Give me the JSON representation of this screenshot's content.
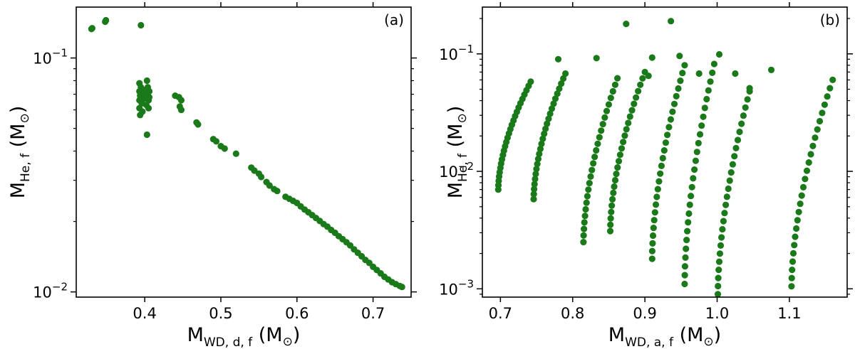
{
  "chart_data": [
    {
      "type": "scatter",
      "panel_label": "(a)",
      "xlabel": {
        "main": "M",
        "sub": "WD, d, f",
        "unit": "(M",
        "unit_sym": "⊙",
        "unit_close": ")"
      },
      "ylabel": {
        "main": "M",
        "sub": "He, f",
        "unit": "(M",
        "unit_sym": "⊙",
        "unit_close": ")"
      },
      "x_scale": "linear",
      "y_scale": "log",
      "xlim": [
        0.31,
        0.75
      ],
      "ylim": [
        0.0095,
        0.165
      ],
      "x_ticks": [
        0.4,
        0.5,
        0.6,
        0.7
      ],
      "x_tick_labels": [
        "0.4",
        "0.5",
        "0.6",
        "0.7"
      ],
      "y_ticks": [
        0.01,
        0.1
      ],
      "y_tick_labels": [
        {
          "base": "10",
          "exp": "−2"
        },
        {
          "base": "10",
          "exp": "−1"
        }
      ],
      "marker_color": "#1a7a1a",
      "points": [
        [
          0.33,
          0.133
        ],
        [
          0.331,
          0.134
        ],
        [
          0.348,
          0.143
        ],
        [
          0.349,
          0.145
        ],
        [
          0.395,
          0.138
        ],
        [
          0.393,
          0.078
        ],
        [
          0.393,
          0.072
        ],
        [
          0.393,
          0.066
        ],
        [
          0.393,
          0.061
        ],
        [
          0.394,
          0.057
        ],
        [
          0.394,
          0.069
        ],
        [
          0.395,
          0.075
        ],
        [
          0.396,
          0.064
        ],
        [
          0.397,
          0.059
        ],
        [
          0.398,
          0.07
        ],
        [
          0.399,
          0.067
        ],
        [
          0.4,
          0.073
        ],
        [
          0.401,
          0.068
        ],
        [
          0.402,
          0.072
        ],
        [
          0.402,
          0.063
        ],
        [
          0.403,
          0.08
        ],
        [
          0.404,
          0.075
        ],
        [
          0.404,
          0.07
        ],
        [
          0.405,
          0.066
        ],
        [
          0.405,
          0.061
        ],
        [
          0.406,
          0.072
        ],
        [
          0.406,
          0.068
        ],
        [
          0.403,
          0.047
        ],
        [
          0.44,
          0.069
        ],
        [
          0.445,
          0.068
        ],
        [
          0.448,
          0.066
        ],
        [
          0.446,
          0.062
        ],
        [
          0.448,
          0.06
        ],
        [
          0.468,
          0.053
        ],
        [
          0.47,
          0.052
        ],
        [
          0.49,
          0.045
        ],
        [
          0.494,
          0.044
        ],
        [
          0.5,
          0.042
        ],
        [
          0.505,
          0.041
        ],
        [
          0.52,
          0.039
        ],
        [
          0.54,
          0.034
        ],
        [
          0.544,
          0.033
        ],
        [
          0.55,
          0.032
        ],
        [
          0.553,
          0.031
        ],
        [
          0.56,
          0.0295
        ],
        [
          0.564,
          0.0285
        ],
        [
          0.57,
          0.0275
        ],
        [
          0.574,
          0.027
        ],
        [
          0.585,
          0.0255
        ],
        [
          0.59,
          0.025
        ],
        [
          0.595,
          0.0245
        ],
        [
          0.6,
          0.024
        ],
        [
          0.605,
          0.0232
        ],
        [
          0.61,
          0.0225
        ],
        [
          0.615,
          0.0219
        ],
        [
          0.62,
          0.0213
        ],
        [
          0.625,
          0.0207
        ],
        [
          0.63,
          0.0201
        ],
        [
          0.635,
          0.0195
        ],
        [
          0.64,
          0.019
        ],
        [
          0.645,
          0.0184
        ],
        [
          0.65,
          0.0179
        ],
        [
          0.655,
          0.0173
        ],
        [
          0.66,
          0.0168
        ],
        [
          0.665,
          0.0163
        ],
        [
          0.67,
          0.0158
        ],
        [
          0.675,
          0.0152
        ],
        [
          0.68,
          0.0147
        ],
        [
          0.685,
          0.0142
        ],
        [
          0.69,
          0.0137
        ],
        [
          0.695,
          0.0133
        ],
        [
          0.7,
          0.0128
        ],
        [
          0.705,
          0.0124
        ],
        [
          0.71,
          0.012
        ],
        [
          0.715,
          0.0116
        ],
        [
          0.72,
          0.0113
        ],
        [
          0.725,
          0.011
        ],
        [
          0.73,
          0.0108
        ],
        [
          0.735,
          0.0106
        ],
        [
          0.738,
          0.0105
        ]
      ]
    },
    {
      "type": "scatter",
      "panel_label": "(b)",
      "xlabel": {
        "main": "M",
        "sub": "WD, a, f",
        "unit": "(M",
        "unit_sym": "⊙",
        "unit_close": ")"
      },
      "ylabel": {
        "main": "M",
        "sub": "He, f",
        "unit": "(M",
        "unit_sym": "⊙",
        "unit_close": ")"
      },
      "x_scale": "linear",
      "y_scale": "log",
      "xlim": [
        0.675,
        1.18
      ],
      "ylim": [
        0.00085,
        0.25
      ],
      "x_ticks": [
        0.7,
        0.8,
        0.9,
        1.0,
        1.1
      ],
      "x_tick_labels": [
        "0.7",
        "0.8",
        "0.9",
        "1.0",
        "1.1"
      ],
      "y_ticks": [
        0.001,
        0.01,
        0.1
      ],
      "y_tick_labels": [
        {
          "base": "10",
          "exp": "−3"
        },
        {
          "base": "10",
          "exp": "−2"
        },
        {
          "base": "10",
          "exp": "−1"
        }
      ],
      "marker_color": "#1a7a1a",
      "tracks": [
        {
          "x0": 0.697,
          "x1": 0.742,
          "y0": 0.007,
          "y1": 0.058
        },
        {
          "x0": 0.746,
          "x1": 0.79,
          "y0": 0.0058,
          "y1": 0.068
        },
        {
          "x0": 0.815,
          "x1": 0.862,
          "y0": 0.0025,
          "y1": 0.062
        },
        {
          "x0": 0.852,
          "x1": 0.9,
          "y0": 0.0031,
          "y1": 0.07
        },
        {
          "x0": 0.91,
          "x1": 0.955,
          "y0": 0.0018,
          "y1": 0.08
        },
        {
          "x0": 0.955,
          "x1": 0.996,
          "y0": 0.0011,
          "y1": 0.082
        },
        {
          "x0": 1.001,
          "x1": 1.045,
          "y0": 0.0009,
          "y1": 0.048
        },
        {
          "x0": 1.103,
          "x1": 1.16,
          "y0": 0.00105,
          "y1": 0.06
        }
      ],
      "extra_points": [
        [
          0.78,
          0.09
        ],
        [
          0.833,
          0.092
        ],
        [
          0.874,
          0.18
        ],
        [
          0.905,
          0.065
        ],
        [
          0.91,
          0.093
        ],
        [
          0.936,
          0.19
        ],
        [
          0.948,
          0.096
        ],
        [
          0.975,
          0.068
        ],
        [
          1.003,
          0.099
        ],
        [
          1.025,
          0.068
        ],
        [
          1.045,
          0.051
        ],
        [
          1.075,
          0.073
        ]
      ]
    }
  ]
}
